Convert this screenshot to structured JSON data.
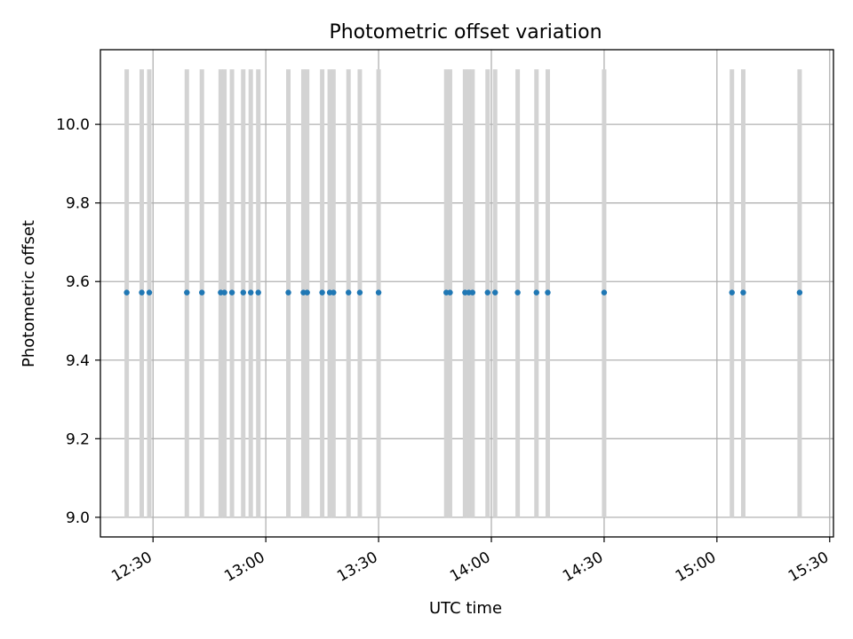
{
  "chart_data": {
    "type": "scatter",
    "title": "Photometric offset variation",
    "xlabel": "UTC time",
    "ylabel": "Photometric offset",
    "xlim": [
      "12:16",
      "15:31"
    ],
    "ylim": [
      8.95,
      10.19
    ],
    "x_ticks": [
      "12:30",
      "13:00",
      "13:30",
      "14:00",
      "14:30",
      "15:00",
      "15:30"
    ],
    "y_ticks": [
      "9.0",
      "9.2",
      "9.4",
      "9.6",
      "9.8",
      "10.0"
    ],
    "grid": true,
    "error_bars": {
      "lower": 9.0,
      "upper": 10.14
    },
    "series": [
      {
        "x": [
          "12:23",
          "12:27",
          "12:29",
          "12:39",
          "12:43",
          "12:48",
          "12:49",
          "12:51",
          "12:54",
          "12:56",
          "12:58",
          "13:06",
          "13:10",
          "13:11",
          "13:15",
          "13:17",
          "13:18",
          "13:22",
          "13:25",
          "13:30",
          "13:48",
          "13:49",
          "13:53",
          "13:54",
          "13:55",
          "13:59",
          "14:01",
          "14:07",
          "14:12",
          "14:15",
          "14:30",
          "15:04",
          "15:07",
          "15:22"
        ],
        "y": [
          9.572,
          9.572,
          9.572,
          9.572,
          9.572,
          9.572,
          9.572,
          9.572,
          9.572,
          9.572,
          9.572,
          9.572,
          9.572,
          9.572,
          9.572,
          9.572,
          9.572,
          9.572,
          9.572,
          9.572,
          9.572,
          9.572,
          9.572,
          9.572,
          9.572,
          9.572,
          9.572,
          9.572,
          9.572,
          9.572,
          9.572,
          9.572,
          9.572,
          9.572
        ]
      }
    ],
    "colors": {
      "points": "#1f77b4",
      "error_bars": "#d3d3d3",
      "grid": "#b0b0b0"
    }
  }
}
